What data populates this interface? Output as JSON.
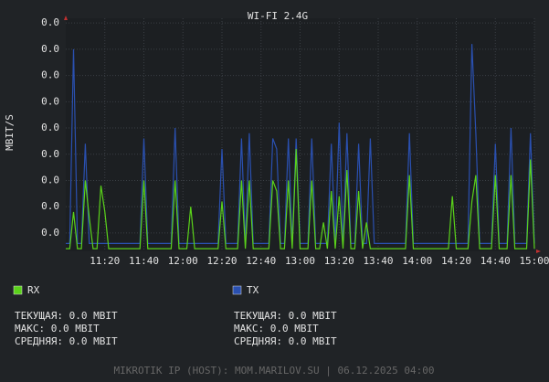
{
  "chart_data": {
    "type": "line",
    "title": "WI-FI 2.4G",
    "y_label": "MBIT/S",
    "x": [
      "11:00",
      "11:02",
      "11:04",
      "11:06",
      "11:08",
      "11:10",
      "11:12",
      "11:14",
      "11:16",
      "11:18",
      "11:20",
      "11:22",
      "11:24",
      "11:26",
      "11:28",
      "11:30",
      "11:32",
      "11:34",
      "11:36",
      "11:38",
      "11:40",
      "11:42",
      "11:44",
      "11:46",
      "11:48",
      "11:50",
      "11:52",
      "11:54",
      "11:56",
      "11:58",
      "12:00",
      "12:02",
      "12:04",
      "12:06",
      "12:08",
      "12:10",
      "12:12",
      "12:14",
      "12:16",
      "12:18",
      "12:20",
      "12:22",
      "12:24",
      "12:26",
      "12:28",
      "12:30",
      "12:32",
      "12:34",
      "12:36",
      "12:38",
      "12:40",
      "12:42",
      "12:44",
      "12:46",
      "12:48",
      "12:50",
      "12:52",
      "12:54",
      "12:56",
      "12:58",
      "13:00",
      "13:02",
      "13:04",
      "13:06",
      "13:08",
      "13:10",
      "13:12",
      "13:14",
      "13:16",
      "13:18",
      "13:20",
      "13:22",
      "13:24",
      "13:26",
      "13:28",
      "13:30",
      "13:32",
      "13:34",
      "13:36",
      "13:38",
      "13:40",
      "13:42",
      "13:44",
      "13:46",
      "13:48",
      "13:50",
      "13:52",
      "13:54",
      "13:56",
      "13:58",
      "14:00",
      "14:02",
      "14:04",
      "14:06",
      "14:08",
      "14:10",
      "14:12",
      "14:14",
      "14:16",
      "14:18",
      "14:20",
      "14:22",
      "14:24",
      "14:26",
      "14:28",
      "14:30",
      "14:32",
      "14:34",
      "14:36",
      "14:38",
      "14:40",
      "14:42",
      "14:44",
      "14:46",
      "14:48",
      "14:50",
      "14:52",
      "14:54",
      "14:56",
      "14:58",
      "15:00"
    ],
    "xticks": [
      "11:20",
      "11:40",
      "12:00",
      "12:20",
      "12:40",
      "13:00",
      "13:20",
      "13:40",
      "14:00",
      "14:20",
      "14:40",
      "15:00"
    ],
    "ylim": [
      0.0015,
      0.0459
    ],
    "yticks": [
      {
        "value": 0.005,
        "label": "0.0"
      },
      {
        "value": 0.01,
        "label": "0.0"
      },
      {
        "value": 0.015,
        "label": "0.0"
      },
      {
        "value": 0.02,
        "label": "0.0"
      },
      {
        "value": 0.025,
        "label": "0.0"
      },
      {
        "value": 0.03,
        "label": "0.0"
      },
      {
        "value": 0.035,
        "label": "0.0"
      },
      {
        "value": 0.04,
        "label": "0.0"
      },
      {
        "value": 0.045,
        "label": "0.0"
      }
    ],
    "grid": true,
    "series": [
      {
        "name": "RX",
        "color": "#5ad21a",
        "stats": [
          "ТЕКУЩАЯ: 0.0 MBIT",
          "МАКС: 0.0 MBIT",
          "СРЕДНЯЯ: 0.0 MBIT"
        ],
        "values": [
          0.002,
          0.002,
          0.009,
          0.002,
          0.002,
          0.015,
          0.008,
          0.002,
          0.002,
          0.014,
          0.009,
          0.002,
          0.002,
          0.002,
          0.002,
          0.002,
          0.002,
          0.002,
          0.002,
          0.002,
          0.015,
          0.002,
          0.002,
          0.002,
          0.002,
          0.002,
          0.002,
          0.002,
          0.015,
          0.002,
          0.002,
          0.002,
          0.01,
          0.002,
          0.002,
          0.002,
          0.002,
          0.002,
          0.002,
          0.002,
          0.011,
          0.002,
          0.002,
          0.002,
          0.002,
          0.015,
          0.002,
          0.015,
          0.002,
          0.002,
          0.002,
          0.002,
          0.002,
          0.015,
          0.013,
          0.002,
          0.002,
          0.015,
          0.002,
          0.021,
          0.002,
          0.002,
          0.002,
          0.015,
          0.002,
          0.002,
          0.007,
          0.002,
          0.013,
          0.002,
          0.012,
          0.002,
          0.017,
          0.002,
          0.002,
          0.013,
          0.002,
          0.007,
          0.002,
          0.002,
          0.002,
          0.002,
          0.002,
          0.002,
          0.002,
          0.002,
          0.002,
          0.002,
          0.016,
          0.002,
          0.002,
          0.002,
          0.002,
          0.002,
          0.002,
          0.002,
          0.002,
          0.002,
          0.002,
          0.012,
          0.002,
          0.002,
          0.002,
          0.002,
          0.011,
          0.016,
          0.002,
          0.002,
          0.002,
          0.002,
          0.016,
          0.002,
          0.002,
          0.002,
          0.016,
          0.002,
          0.002,
          0.002,
          0.002,
          0.019,
          0.002
        ]
      },
      {
        "name": "TX",
        "color": "#2a50b0",
        "stats": [
          "ТЕКУЩАЯ: 0.0 MBIT",
          "МАКС: 0.0 MBIT",
          "СРЕДНЯЯ: 0.0 MBIT"
        ],
        "values": [
          0.003,
          0.003,
          0.04,
          0.003,
          0.003,
          0.022,
          0.003,
          0.003,
          0.003,
          0.003,
          0.003,
          0.003,
          0.003,
          0.003,
          0.003,
          0.003,
          0.003,
          0.003,
          0.003,
          0.003,
          0.023,
          0.003,
          0.003,
          0.003,
          0.003,
          0.003,
          0.003,
          0.003,
          0.025,
          0.003,
          0.003,
          0.003,
          0.003,
          0.003,
          0.003,
          0.003,
          0.003,
          0.003,
          0.003,
          0.003,
          0.021,
          0.003,
          0.003,
          0.003,
          0.003,
          0.023,
          0.003,
          0.024,
          0.003,
          0.003,
          0.003,
          0.003,
          0.003,
          0.023,
          0.021,
          0.003,
          0.003,
          0.023,
          0.003,
          0.023,
          0.003,
          0.003,
          0.003,
          0.023,
          0.003,
          0.003,
          0.003,
          0.003,
          0.022,
          0.003,
          0.026,
          0.003,
          0.024,
          0.003,
          0.003,
          0.022,
          0.003,
          0.003,
          0.023,
          0.003,
          0.003,
          0.003,
          0.003,
          0.003,
          0.003,
          0.003,
          0.003,
          0.003,
          0.024,
          0.003,
          0.003,
          0.003,
          0.003,
          0.003,
          0.003,
          0.003,
          0.003,
          0.003,
          0.003,
          0.003,
          0.003,
          0.003,
          0.003,
          0.003,
          0.041,
          0.024,
          0.003,
          0.003,
          0.003,
          0.003,
          0.022,
          0.003,
          0.003,
          0.003,
          0.025,
          0.003,
          0.003,
          0.003,
          0.003,
          0.024,
          0.003
        ]
      }
    ],
    "footer": "MIKROTIK IP (HOST): MOM.MARILOV.SU | 06.12.2025 04:00"
  }
}
